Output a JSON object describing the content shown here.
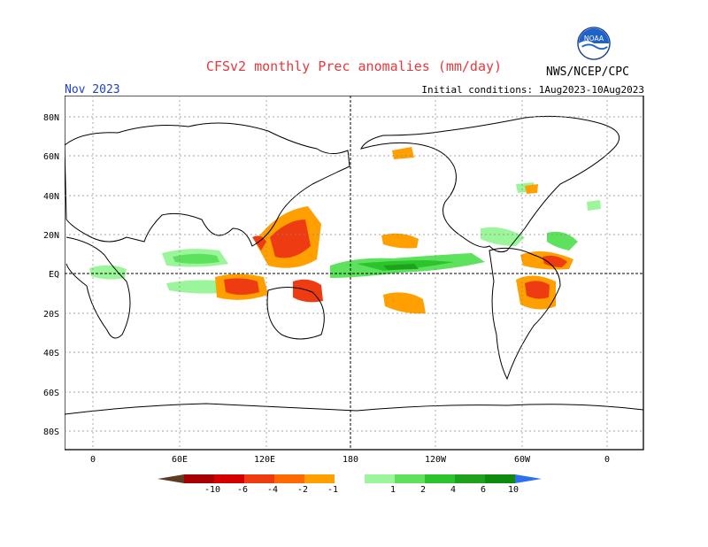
{
  "header": {
    "title": "CFSv2 monthly Prec anomalies (mm/day)",
    "month": "Nov 2023",
    "initial_conditions": "Initial conditions: 1Aug2023-10Aug2023",
    "agency": "NWS/NCEP/CPC",
    "logo_text": "NOAA"
  },
  "map": {
    "lat_labels": [
      "80N",
      "60N",
      "40N",
      "20N",
      "EQ",
      "20S",
      "40S",
      "60S",
      "80S"
    ],
    "lon_labels": [
      "0",
      "60E",
      "120E",
      "180",
      "120W",
      "60W",
      "0"
    ]
  },
  "colorbar": {
    "labels": [
      "-10",
      "-6",
      "-4",
      "-2",
      "-1",
      "1",
      "2",
      "4",
      "6",
      "10"
    ],
    "colors": [
      "#5e3b23",
      "#a80000",
      "#d40000",
      "#ef3b12",
      "#ff6a00",
      "#ff9f00",
      "#ffffff",
      "#9bf59b",
      "#5ee25e",
      "#2cc42c",
      "#1ea21e",
      "#0f8a0f",
      "#2e6ff2"
    ]
  }
}
